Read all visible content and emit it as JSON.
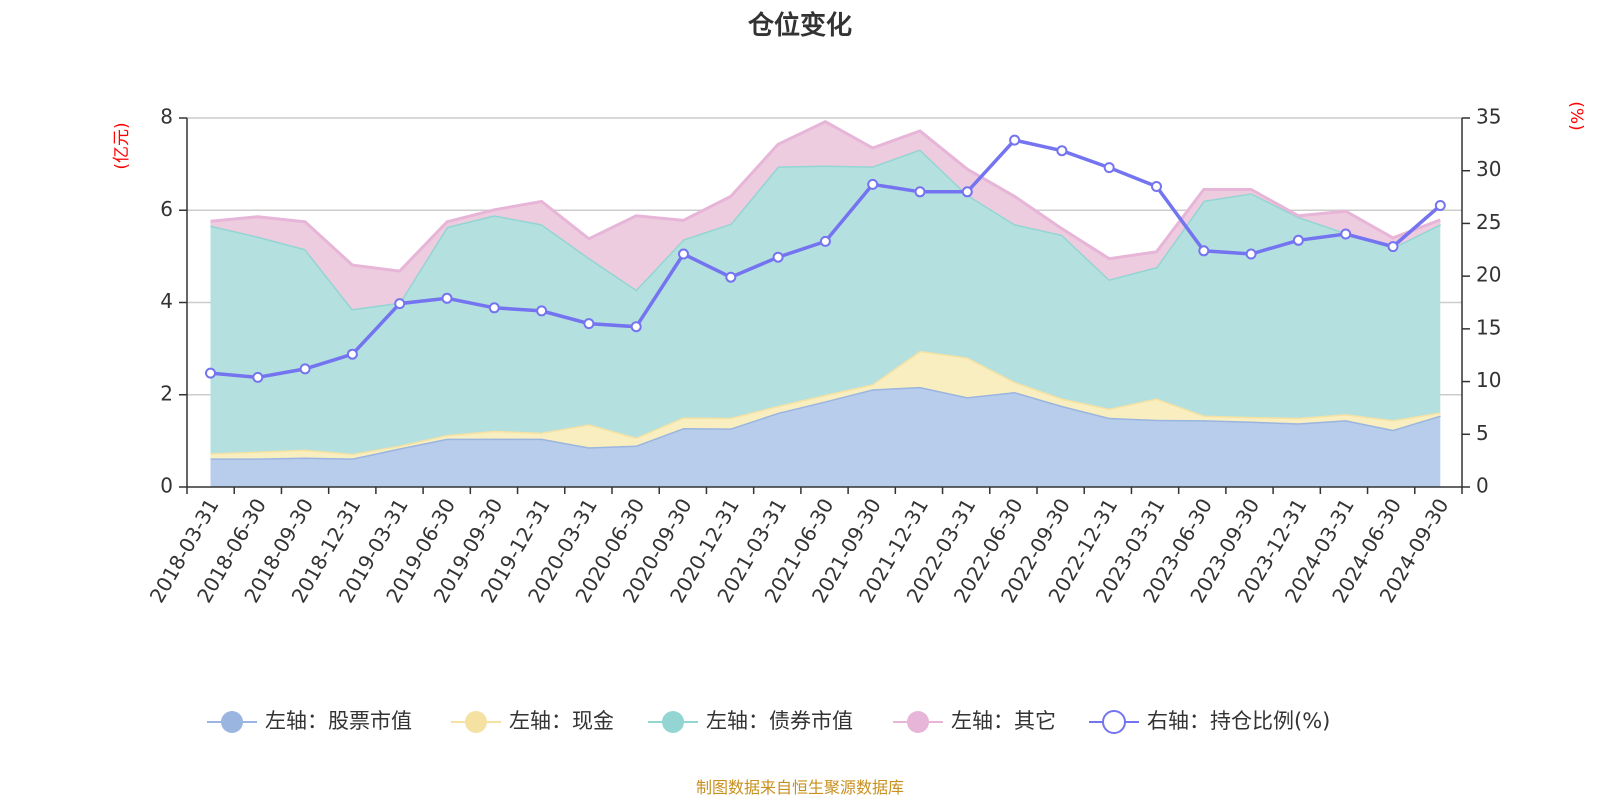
{
  "chart_data": {
    "type": "area",
    "title": "仓位变化",
    "source_note": "制图数据来自恒生聚源数据库",
    "left_axis": {
      "unit_label": "(亿元)",
      "ylim": [
        0,
        8
      ],
      "ticks": [
        0,
        2,
        4,
        6,
        8
      ]
    },
    "right_axis": {
      "unit_label": "(%)",
      "ylim": [
        0,
        35
      ],
      "ticks": [
        0,
        5,
        10,
        15,
        20,
        25,
        30,
        35
      ]
    },
    "categories": [
      "2018-03-31",
      "2018-06-30",
      "2018-09-30",
      "2018-12-31",
      "2019-03-31",
      "2019-06-30",
      "2019-09-30",
      "2019-12-31",
      "2020-03-31",
      "2020-06-30",
      "2020-09-30",
      "2020-12-31",
      "2021-03-31",
      "2021-06-30",
      "2021-09-30",
      "2021-12-31",
      "2022-03-31",
      "2022-06-30",
      "2022-09-30",
      "2022-12-31",
      "2023-03-31",
      "2023-06-30",
      "2023-09-30",
      "2023-12-31",
      "2024-03-31",
      "2024-06-30",
      "2024-09-30"
    ],
    "stacked_series": [
      {
        "name": "左轴：股票市值",
        "axis": "left",
        "color": "#9ab5e0",
        "fill": "#b8cceb",
        "values": [
          0.62,
          0.62,
          0.64,
          0.62,
          0.84,
          1.05,
          1.05,
          1.05,
          0.86,
          0.9,
          1.28,
          1.27,
          1.61,
          1.86,
          2.12,
          2.17,
          1.95,
          2.06,
          1.76,
          1.5,
          1.46,
          1.45,
          1.42,
          1.38,
          1.45,
          1.24,
          1.55
        ]
      },
      {
        "name": "左轴：现金",
        "axis": "left",
        "color": "#f5e2a3",
        "fill": "#f9eec0",
        "values": [
          0.11,
          0.15,
          0.17,
          0.1,
          0.06,
          0.08,
          0.17,
          0.13,
          0.5,
          0.17,
          0.23,
          0.23,
          0.15,
          0.14,
          0.11,
          0.78,
          0.86,
          0.22,
          0.16,
          0.2,
          0.46,
          0.1,
          0.1,
          0.12,
          0.13,
          0.21,
          0.07
        ]
      },
      {
        "name": "左轴：债券市值",
        "axis": "left",
        "color": "#93d5d3",
        "fill": "#b5e0e0",
        "values": [
          4.94,
          4.66,
          4.35,
          3.14,
          3.1,
          4.51,
          4.67,
          4.52,
          3.61,
          3.21,
          3.86,
          4.21,
          5.19,
          4.97,
          4.72,
          4.37,
          3.53,
          3.42,
          3.55,
          2.8,
          2.85,
          4.66,
          4.85,
          4.36,
          3.93,
          3.74,
          4.08
        ]
      },
      {
        "name": "左轴：其它",
        "axis": "left",
        "color": "#e6b5d8",
        "fill": "#eeccdf",
        "values": [
          0.09,
          0.43,
          0.59,
          0.95,
          0.68,
          0.11,
          0.12,
          0.49,
          0.41,
          1.6,
          0.41,
          0.59,
          0.48,
          0.95,
          0.4,
          0.4,
          0.55,
          0.6,
          0.13,
          0.45,
          0.33,
          0.24,
          0.08,
          0.02,
          0.47,
          0.21,
          0.09
        ]
      }
    ],
    "line_series": {
      "name": "右轴：持仓比例(%)",
      "axis": "right",
      "color": "#7474f0",
      "values": [
        10.8,
        10.4,
        11.2,
        12.6,
        17.4,
        17.9,
        17.0,
        16.7,
        15.5,
        15.2,
        22.1,
        19.9,
        21.8,
        23.3,
        28.7,
        28.0,
        28.0,
        32.9,
        31.9,
        30.3,
        28.5,
        22.4,
        22.1,
        23.4,
        24.0,
        22.8,
        26.7
      ]
    },
    "legend": [
      "左轴：股票市值",
      "左轴：现金",
      "左轴：债券市值",
      "左轴：其它",
      "右轴：持仓比例(%)"
    ]
  }
}
